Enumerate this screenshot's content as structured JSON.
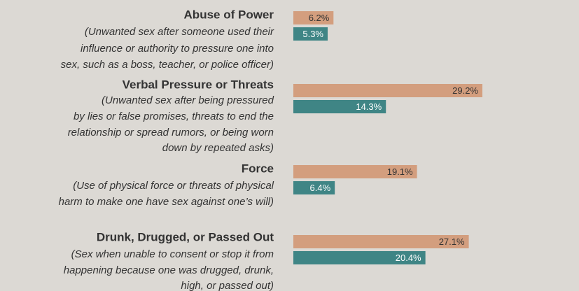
{
  "chart_data": {
    "type": "bar",
    "orientation": "horizontal",
    "categories": [
      "Abuse of Power",
      "Verbal Pressure or Threats",
      "Force",
      "Drunk, Drugged, or Passed Out"
    ],
    "descriptions": [
      [
        "(Unwanted sex after someone used their",
        "influence or authority to pressure one into",
        "sex, such as a boss, teacher, or police officer)"
      ],
      [
        "(Unwanted sex after being pressured",
        "by lies or false promises, threats to end the",
        "relationship or spread rumors, or being worn",
        "down by repeated asks)"
      ],
      [
        "(Use of physical force or threats of physical",
        "harm to make one have sex against one’s will)"
      ],
      [
        "(Sex when unable to consent or stop it from",
        "happening because one was drugged, drunk,",
        "high, or passed out)"
      ]
    ],
    "series": [
      {
        "color": "#d39e7e",
        "values": [
          6.2,
          29.2,
          19.1,
          27.1
        ],
        "value_labels": [
          "6.2%",
          "29.2%",
          "19.1%",
          "27.1%"
        ]
      },
      {
        "color": "#3f8585",
        "values": [
          5.3,
          14.3,
          6.4,
          20.4
        ],
        "value_labels": [
          "5.3%",
          "14.3%",
          "6.4%",
          "20.4%"
        ]
      }
    ]
  }
}
